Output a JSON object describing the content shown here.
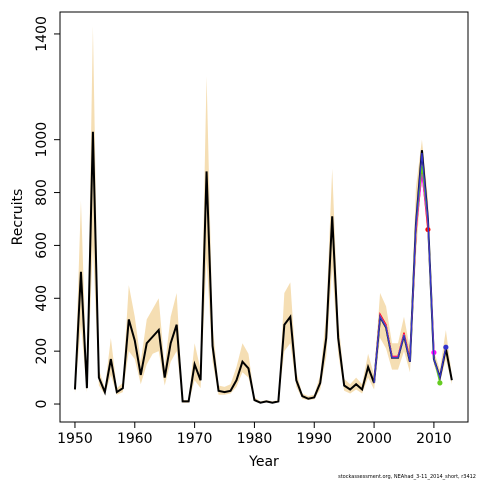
{
  "chart_data": {
    "type": "line",
    "xlabel": "Year",
    "ylabel": "Recruits",
    "source": "stockassessment.org, NEAhad_3-11_2014_short, r3412",
    "xlim": [
      1947.5,
      2015.7
    ],
    "ylim": [
      -68,
      1483
    ],
    "xticks": [
      1950,
      1960,
      1970,
      1980,
      1990,
      2000,
      2010
    ],
    "yticks": [
      0,
      200,
      400,
      600,
      800,
      1000,
      1400
    ],
    "x": [
      1950,
      1951,
      1952,
      1953,
      1954,
      1955,
      1956,
      1957,
      1958,
      1959,
      1960,
      1961,
      1962,
      1963,
      1964,
      1965,
      1966,
      1967,
      1968,
      1969,
      1970,
      1971,
      1972,
      1973,
      1974,
      1975,
      1976,
      1977,
      1978,
      1979,
      1980,
      1981,
      1982,
      1983,
      1984,
      1985,
      1986,
      1987,
      1988,
      1989,
      1990,
      1991,
      1992,
      1993,
      1994,
      1995,
      1996,
      1997,
      1998,
      1999,
      2000,
      2001,
      2002,
      2003,
      2004,
      2005,
      2006,
      2007,
      2008,
      2009,
      2010,
      2011,
      2012,
      2013
    ],
    "band": {
      "color": "#f5deb3",
      "upper": [
        70,
        770,
        80,
        1430,
        130,
        60,
        250,
        60,
        80,
        450,
        330,
        160,
        320,
        360,
        400,
        140,
        330,
        420,
        15,
        15,
        230,
        130,
        1240,
        300,
        70,
        65,
        75,
        140,
        230,
        190,
        25,
        10,
        15,
        10,
        15,
        420,
        460,
        120,
        40,
        30,
        35,
        110,
        340,
        890,
        320,
        95,
        75,
        100,
        75,
        190,
        110,
        420,
        370,
        230,
        230,
        330,
        210,
        820,
        1000,
        780,
        200,
        130,
        280,
        110
      ],
      "lower": [
        40,
        300,
        45,
        600,
        70,
        35,
        110,
        35,
        45,
        200,
        170,
        75,
        150,
        190,
        200,
        70,
        160,
        200,
        5,
        5,
        90,
        60,
        550,
        160,
        35,
        35,
        40,
        65,
        120,
        100,
        10,
        3,
        6,
        3,
        6,
        200,
        230,
        65,
        20,
        15,
        18,
        55,
        180,
        520,
        190,
        50,
        40,
        55,
        40,
        100,
        55,
        250,
        210,
        130,
        130,
        200,
        120,
        560,
        880,
        620,
        150,
        80,
        170,
        75
      ]
    },
    "series": [
      {
        "color": "#000000",
        "values": [
          55,
          500,
          60,
          1030,
          100,
          45,
          170,
          45,
          60,
          320,
          240,
          110,
          230,
          255,
          280,
          100,
          230,
          300,
          10,
          10,
          150,
          90,
          880,
          220,
          50,
          45,
          50,
          90,
          160,
          135,
          15,
          5,
          10,
          5,
          10,
          300,
          330,
          90,
          30,
          20,
          25,
          80,
          250,
          710,
          250,
          70,
          55,
          75,
          55,
          140,
          80,
          330,
          290,
          175,
          175,
          260,
          160,
          680,
          960,
          700,
          170,
          100,
          210,
          90
        ]
      },
      {
        "color": "#ff0000",
        "x": [
          2000,
          2001,
          2002,
          2003,
          2004,
          2005,
          2006,
          2007,
          2008,
          2009
        ],
        "values": [
          80,
          340,
          300,
          180,
          180,
          270,
          170,
          650,
          880,
          660
        ]
      },
      {
        "color": "#ff00ff",
        "x": [
          2000,
          2001,
          2002,
          2003,
          2004,
          2005,
          2006,
          2007,
          2008,
          2009,
          2010
        ],
        "values": [
          80,
          335,
          295,
          178,
          178,
          265,
          165,
          660,
          870,
          680,
          195
        ]
      },
      {
        "color": "#66cc22",
        "x": [
          2000,
          2001,
          2002,
          2003,
          2004,
          2005,
          2006,
          2007,
          2008,
          2009,
          2010,
          2011
        ],
        "values": [
          80,
          332,
          292,
          176,
          176,
          262,
          162,
          670,
          900,
          690,
          175,
          80
        ]
      },
      {
        "color": "#3333cc",
        "x": [
          2000,
          2001,
          2002,
          2003,
          2004,
          2005,
          2006,
          2007,
          2008,
          2009,
          2010,
          2011,
          2012
        ],
        "values": [
          80,
          330,
          290,
          175,
          175,
          260,
          160,
          680,
          950,
          700,
          170,
          100,
          215
        ]
      }
    ]
  }
}
